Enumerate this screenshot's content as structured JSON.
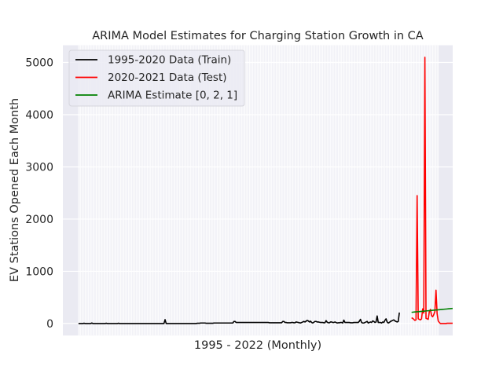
{
  "chart_data": {
    "type": "line",
    "title": "ARIMA Model Estimates for Charging Station Growth in CA",
    "xlabel": "1995 - 2022 (Monthly)",
    "ylabel": "EV Stations Opened Each Month",
    "ylim": [
      -230,
      5330
    ],
    "yticks": [
      0,
      1000,
      2000,
      3000,
      4000,
      5000
    ],
    "xrange_months": [
      "1995-01",
      "2021-12"
    ],
    "grid": true,
    "legend_position": "top-left",
    "background_color": "#eaeaf2",
    "series": [
      {
        "name": "1995-2020 Data (Train)",
        "color": "#000000",
        "x_start": "1995-01",
        "values": [
          0,
          0,
          0,
          0,
          0,
          5,
          0,
          0,
          0,
          0,
          0,
          0,
          10,
          0,
          0,
          0,
          0,
          0,
          0,
          0,
          0,
          0,
          0,
          0,
          0,
          5,
          0,
          0,
          0,
          0,
          0,
          0,
          0,
          0,
          0,
          0,
          5,
          0,
          0,
          0,
          0,
          0,
          0,
          0,
          0,
          0,
          0,
          0,
          0,
          0,
          0,
          0,
          0,
          0,
          0,
          0,
          0,
          0,
          0,
          0,
          0,
          0,
          0,
          0,
          0,
          0,
          0,
          0,
          0,
          0,
          0,
          0,
          0,
          0,
          0,
          0,
          0,
          0,
          75,
          0,
          0,
          0,
          0,
          0,
          0,
          0,
          0,
          0,
          0,
          0,
          0,
          0,
          0,
          0,
          0,
          0,
          0,
          0,
          0,
          0,
          0,
          0,
          0,
          0,
          0,
          0,
          0,
          5,
          5,
          5,
          10,
          10,
          10,
          10,
          10,
          5,
          5,
          5,
          5,
          5,
          5,
          5,
          10,
          10,
          10,
          10,
          10,
          10,
          10,
          10,
          10,
          10,
          10,
          10,
          10,
          10,
          10,
          10,
          10,
          10,
          40,
          40,
          20,
          20,
          20,
          20,
          20,
          20,
          20,
          20,
          20,
          20,
          20,
          20,
          20,
          20,
          20,
          20,
          20,
          20,
          20,
          20,
          20,
          20,
          20,
          20,
          20,
          20,
          20,
          20,
          20,
          20,
          15,
          15,
          15,
          15,
          15,
          15,
          15,
          15,
          15,
          15,
          15,
          15,
          40,
          40,
          20,
          20,
          15,
          15,
          15,
          15,
          20,
          20,
          15,
          15,
          30,
          25,
          20,
          15,
          10,
          20,
          30,
          40,
          30,
          45,
          60,
          50,
          30,
          45,
          20,
          10,
          25,
          40,
          40,
          30,
          30,
          25,
          20,
          20,
          20,
          15,
          15,
          55,
          25,
          15,
          15,
          30,
          30,
          20,
          20,
          30,
          20,
          10,
          15,
          15,
          20,
          20,
          10,
          65,
          20,
          20,
          20,
          20,
          20,
          15,
          15,
          15,
          20,
          20,
          20,
          20,
          20,
          45,
          80,
          20,
          10,
          10,
          20,
          30,
          40,
          10,
          20,
          30,
          20,
          50,
          40,
          20,
          30,
          145,
          20,
          20,
          20,
          10,
          30,
          20,
          60,
          90,
          30,
          10,
          20,
          40,
          50,
          60,
          70,
          50,
          40,
          30,
          40,
          210
        ]
      },
      {
        "name": "2020-2021 Data (Test)",
        "color": "#ff0000",
        "x_start": "2020-01",
        "values": [
          110,
          100,
          80,
          60,
          70,
          2450,
          90,
          80,
          70,
          90,
          280,
          200,
          5100,
          100,
          90,
          80,
          230,
          270,
          150,
          130,
          170,
          230,
          640,
          190,
          50,
          20,
          0,
          0,
          0,
          0,
          0,
          0,
          5,
          5,
          5,
          5,
          5,
          5
        ]
      },
      {
        "name": "ARIMA Estimate [0, 2, 1]",
        "color": "#008000",
        "x_start": "2020-01",
        "values": [
          215,
          217,
          219,
          221,
          223,
          225,
          227,
          229,
          231,
          233,
          235,
          237,
          239,
          241,
          243,
          245,
          247,
          249,
          251,
          253,
          255,
          257,
          259,
          261,
          263,
          265,
          267,
          269,
          271,
          273,
          275,
          277,
          279,
          281,
          283,
          285,
          287,
          289
        ]
      }
    ]
  }
}
